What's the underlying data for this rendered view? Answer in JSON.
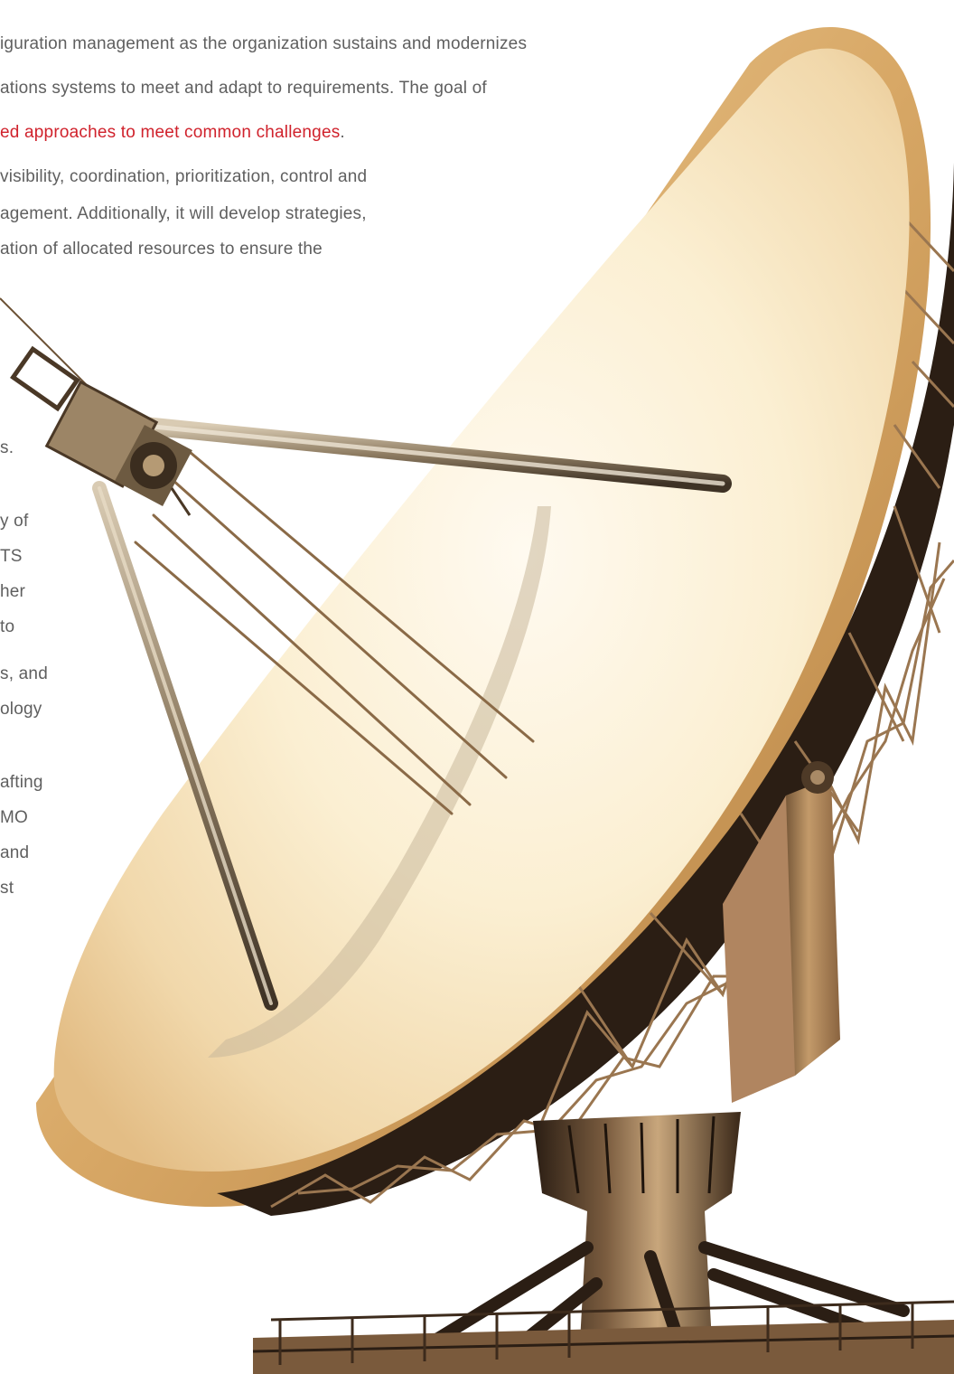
{
  "document": {
    "paragraph1": {
      "lines": [
        "iguration management as the organization sustains and modernizes",
        "ations systems to meet and adapt to requirements. The goal of"
      ],
      "highlight": "ed approaches to meet common challenges",
      "highlight_end": "."
    },
    "paragraph2": {
      "lines": [
        "visibility, coordination, prioritization, control and",
        "agement. Additionally, it will develop strategies,",
        "ation of allocated resources to ensure the"
      ]
    },
    "cut_fragments": [
      "s.",
      "y of",
      "TS",
      "her",
      "to",
      "s, and",
      "ology",
      "afting",
      "MO",
      "and",
      "st"
    ]
  },
  "illustration": {
    "icon": "satellite-dish-antenna",
    "colors": {
      "dish_light": "#fbf0d4",
      "dish_mid": "#eccf9e",
      "dish_rim": "#d3a464",
      "truss_dark": "#2b1e14",
      "truss_light": "#8a6a47",
      "accent_red": "#d0222c",
      "text_gray": "#5f5f5f"
    }
  }
}
